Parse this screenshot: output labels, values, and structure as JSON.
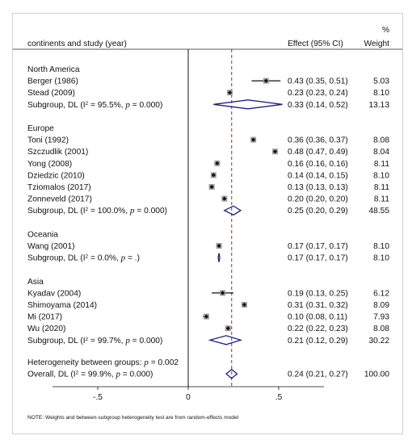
{
  "chart_data": {
    "type": "forest",
    "header": {
      "study_label": "continents and study (year)",
      "effect_label": "Effect (95% CI)",
      "weight_label_top": "%",
      "weight_label": "Weight"
    },
    "xlim": [
      -0.75,
      0.75
    ],
    "xticks": [
      -0.5,
      0,
      0.5
    ],
    "xtick_labels": [
      "-.5",
      "0",
      ".5"
    ],
    "overall_effect": 0.24,
    "groups": [
      {
        "name": "North America",
        "studies": [
          {
            "label": "Berger (1986)",
            "est": 0.43,
            "lo": 0.35,
            "hi": 0.51,
            "ci_text": "0.43 (0.35, 0.51)",
            "weight": "5.03"
          },
          {
            "label": "Stead (2009)",
            "est": 0.23,
            "lo": 0.23,
            "hi": 0.24,
            "ci_text": "0.23 (0.23, 0.24)",
            "weight": "8.10"
          }
        ],
        "subgroup": {
          "label_prefix": "Subgroup, DL (I",
          "sup": "2",
          "label_suffix": " = 95.5%, ",
          "p_label": "p = 0.000)",
          "est": 0.33,
          "lo": 0.14,
          "hi": 0.52,
          "ci_text": "0.33 (0.14, 0.52)",
          "weight": "13.13"
        }
      },
      {
        "name": "Europe",
        "studies": [
          {
            "label": "Toni (1992)",
            "est": 0.36,
            "lo": 0.36,
            "hi": 0.37,
            "ci_text": "0.36 (0.36, 0.37)",
            "weight": "8.08"
          },
          {
            "label": "Szczudlik (2001)",
            "est": 0.48,
            "lo": 0.47,
            "hi": 0.49,
            "ci_text": "0.48 (0.47, 0.49)",
            "weight": "8.04"
          },
          {
            "label": "Yong (2008)",
            "est": 0.16,
            "lo": 0.16,
            "hi": 0.16,
            "ci_text": "0.16 (0.16, 0.16)",
            "weight": "8.11"
          },
          {
            "label": "Dziedzic (2010)",
            "est": 0.14,
            "lo": 0.14,
            "hi": 0.15,
            "ci_text": "0.14 (0.14, 0.15)",
            "weight": "8.10"
          },
          {
            "label": "Tziomalos (2017)",
            "est": 0.13,
            "lo": 0.13,
            "hi": 0.13,
            "ci_text": "0.13 (0.13, 0.13)",
            "weight": "8.11"
          },
          {
            "label": "Zonneveld (2017)",
            "est": 0.2,
            "lo": 0.2,
            "hi": 0.2,
            "ci_text": "0.20 (0.20, 0.20)",
            "weight": "8.11"
          }
        ],
        "subgroup": {
          "label_prefix": "Subgroup, DL (I",
          "sup": "2",
          "label_suffix": " = 100.0%, ",
          "p_label": "p = 0.000)",
          "est": 0.25,
          "lo": 0.2,
          "hi": 0.29,
          "ci_text": "0.25 (0.20, 0.29)",
          "weight": "48.55"
        }
      },
      {
        "name": "Oceania",
        "studies": [
          {
            "label": "Wang (2001)",
            "est": 0.17,
            "lo": 0.17,
            "hi": 0.17,
            "ci_text": "0.17 (0.17, 0.17)",
            "weight": "8.10"
          }
        ],
        "subgroup": {
          "label_prefix": "Subgroup, DL (I",
          "sup": "2",
          "label_suffix": " = 0.0%, ",
          "p_label": "p = .)",
          "est": 0.17,
          "lo": 0.17,
          "hi": 0.17,
          "ci_text": "0.17 (0.17, 0.17)",
          "weight": "8.10"
        }
      },
      {
        "name": "Asia",
        "studies": [
          {
            "label": "Kyadav (2004)",
            "est": 0.19,
            "lo": 0.13,
            "hi": 0.25,
            "ci_text": "0.19 (0.13, 0.25)",
            "weight": "6.12"
          },
          {
            "label": "Shimoyama (2014)",
            "est": 0.31,
            "lo": 0.31,
            "hi": 0.32,
            "ci_text": "0.31 (0.31, 0.32)",
            "weight": "8.09"
          },
          {
            "label": "Mi (2017)",
            "est": 0.1,
            "lo": 0.08,
            "hi": 0.11,
            "ci_text": "0.10 (0.08, 0.11)",
            "weight": "7.93"
          },
          {
            "label": "Wu (2020)",
            "est": 0.22,
            "lo": 0.22,
            "hi": 0.23,
            "ci_text": "0.22 (0.22, 0.23)",
            "weight": "8.08"
          }
        ],
        "subgroup": {
          "label_prefix": "Subgroup, DL (I",
          "sup": "2",
          "label_suffix": " = 99.7%, ",
          "p_label": "p = 0.000)",
          "est": 0.21,
          "lo": 0.12,
          "hi": 0.29,
          "ci_text": "0.21 (0.12, 0.29)",
          "weight": "30.22"
        }
      }
    ],
    "heterogeneity": {
      "prefix": "Heterogeneity between groups: ",
      "p_label": "p = 0.002"
    },
    "overall": {
      "label_prefix": "Overall, DL (I",
      "sup": "2",
      "label_suffix": " = 99.9%, ",
      "p_label": "p = 0.000)",
      "est": 0.24,
      "lo": 0.21,
      "hi": 0.27,
      "ci_text": "0.24 (0.21, 0.27)",
      "weight": "100.00"
    },
    "note": "NOTE: Weights and between-subgroup heterogeneity test are from random-effects model"
  },
  "colors": {
    "diamond": "#1a237e",
    "ref_line": "#b71c1c",
    "marker_fill": "#9e9e9e",
    "text": "#111111"
  }
}
